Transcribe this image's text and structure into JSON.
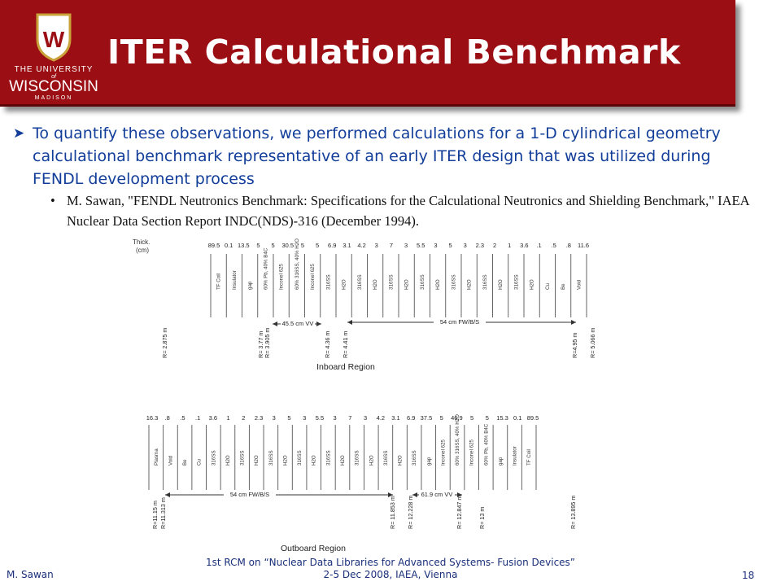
{
  "header": {
    "title": "ITER Calculational Benchmark",
    "brand_color": "#9b0f14"
  },
  "logo": {
    "line1": "THE UNIVERSITY",
    "line2": "of",
    "line3": "WISCONSIN",
    "line4": "MADISON",
    "crest_letter": "W"
  },
  "bullets": {
    "main": "To quantify these observations, we performed calculations for a 1-D cylindrical geometry calculational benchmark representative of an early ITER design that was utilized during FENDL development process",
    "sub": "M. Sawan, \"FENDL Neutronics Benchmark: Specifications for the Calculational Neutronics and Shielding Benchmark,\" IAEA Nuclear Data Section Report INDC(NDS)-316 (December 1994)."
  },
  "figure": {
    "thick_label_1": "Thick.",
    "thick_label_2": "(cm)",
    "inboard": {
      "region_label": "Inboard Region",
      "thickness": [
        "89.5",
        "0.1",
        "13.5",
        "5",
        "5",
        "30.5",
        "5",
        "5",
        "6.9",
        "3.1",
        "4.2",
        "3",
        "7",
        "3",
        "5.5",
        "3",
        "5",
        "3",
        "2.3",
        "2",
        "1",
        "3.6",
        ".1",
        ".5",
        ".8",
        "11.6"
      ],
      "materials": [
        "TF Coil",
        "Insulator",
        "gap",
        "60% Pb, 40% B4C",
        "Inconel 625",
        "60% 316SS, 40% H2O",
        "Inconel 625",
        "316SS",
        "H2O",
        "316SS",
        "H2O",
        "316SS",
        "H2O",
        "316SS",
        "H2O",
        "316SS",
        "H2O",
        "316SS",
        "H2O",
        "316SS",
        "H2O",
        "Cu",
        "Be",
        "Void"
      ],
      "radii": [
        "R= 2.875 m",
        "R= 3.77 m",
        "R= 3.905 m",
        "R= 4.36 m",
        "R= 4.41 m",
        "R=4.95 m",
        "R= 5.066 m"
      ],
      "vv_label": "45.5 cm VV",
      "fw_label": "54  cm FW/B/S"
    },
    "outboard": {
      "region_label": "Outboard Region",
      "thickness": [
        "16.3",
        ".8",
        ".5",
        ".1",
        "3.6",
        "1",
        "2",
        "2.3",
        "3",
        "5",
        "3",
        "5.5",
        "3",
        "7",
        "3",
        "4.2",
        "3.1",
        "6.9",
        "37.5",
        "5",
        "46.9",
        "5",
        "5",
        "15.3",
        "0.1",
        "89.5"
      ],
      "materials": [
        "Plasma",
        "Void",
        "Be",
        "Cu",
        "316SS",
        "H2O",
        "316SS",
        "H2O",
        "316SS",
        "H2O",
        "316SS",
        "H2O",
        "316SS",
        "H2O",
        "316SS",
        "H2O",
        "316SS",
        "H2O",
        "316SS",
        "gap",
        "Inconel 625",
        "60% 316SS, 40% H2O",
        "Inconel 625",
        "60% Pb, 40% B4C",
        "gap",
        "Insulator",
        "TF Coil"
      ],
      "radii": [
        "R=11.15 m",
        "R=11.313 m",
        "R= 11.853 m",
        "R= 12.228 m",
        "R= 12.847 m",
        "R= 13 m",
        "R= 13.895 m"
      ],
      "fw_label": "54  cm FW/B/S",
      "vv_label": "61.9 cm VV"
    }
  },
  "footer": {
    "author": "M. Sawan",
    "conference_line1": "1st RCM on “Nuclear Data Libraries for Advanced Systems- Fusion Devices”",
    "conference_line2": "2-5 Dec 2008, IAEA, Vienna",
    "page_number": "18"
  }
}
